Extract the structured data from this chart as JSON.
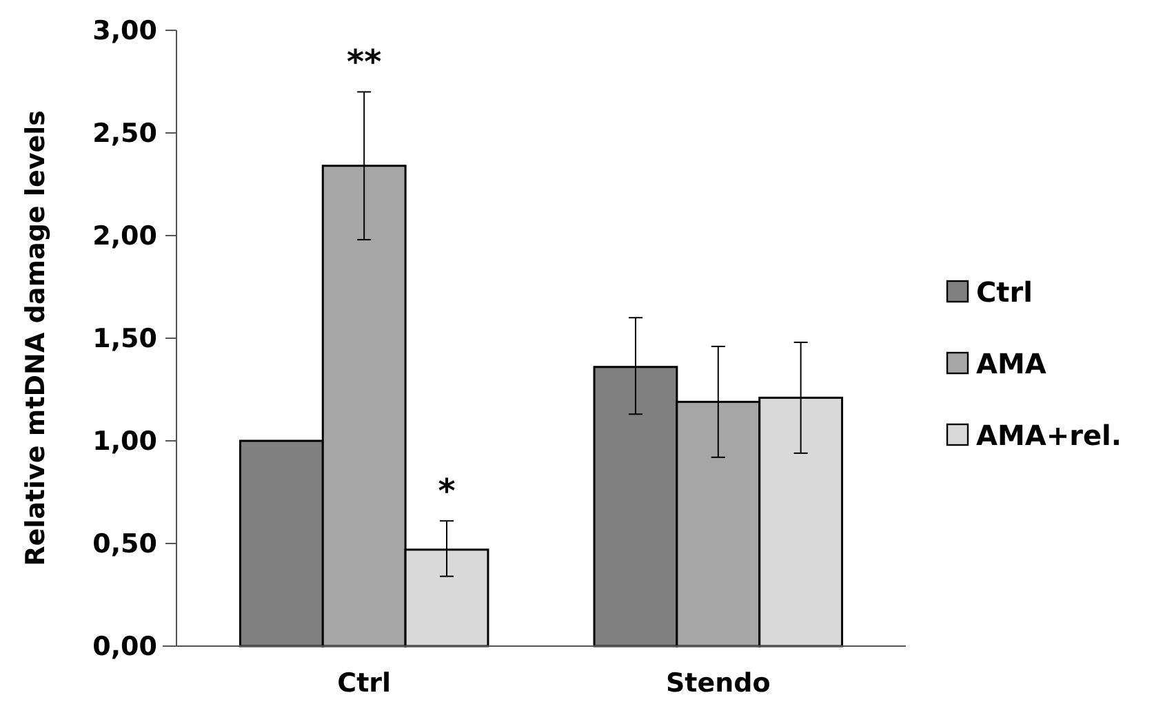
{
  "chart_data": {
    "type": "bar",
    "ylabel": "Relative mtDNA damage levels",
    "categories": [
      "Ctrl",
      "Stendo"
    ],
    "series": [
      {
        "name": "Ctrl",
        "color": "#808080",
        "values": [
          1.0,
          1.36
        ],
        "errors": [
          null,
          [
            1.13,
            1.6
          ]
        ]
      },
      {
        "name": "AMA",
        "color": "#a6a6a6",
        "values": [
          2.34,
          1.19
        ],
        "errors": [
          [
            1.98,
            2.7
          ],
          [
            0.92,
            1.46
          ]
        ]
      },
      {
        "name": "AMA+rel.",
        "color": "#d9d9d9",
        "values": [
          0.47,
          1.21
        ],
        "errors": [
          [
            0.34,
            0.61
          ],
          [
            0.94,
            1.48
          ]
        ]
      }
    ],
    "ylim": [
      0,
      3
    ],
    "yticks": [
      {
        "value": 0,
        "label": "0,00"
      },
      {
        "value": 0.5,
        "label": "0,50"
      },
      {
        "value": 1,
        "label": "1,00"
      },
      {
        "value": 1.5,
        "label": "1,50"
      },
      {
        "value": 2,
        "label": "2,00"
      },
      {
        "value": 2.5,
        "label": "2,50"
      },
      {
        "value": 3,
        "label": "3,00"
      }
    ],
    "annotations": [
      "**",
      "*"
    ],
    "legend": "right",
    "grid": false
  }
}
